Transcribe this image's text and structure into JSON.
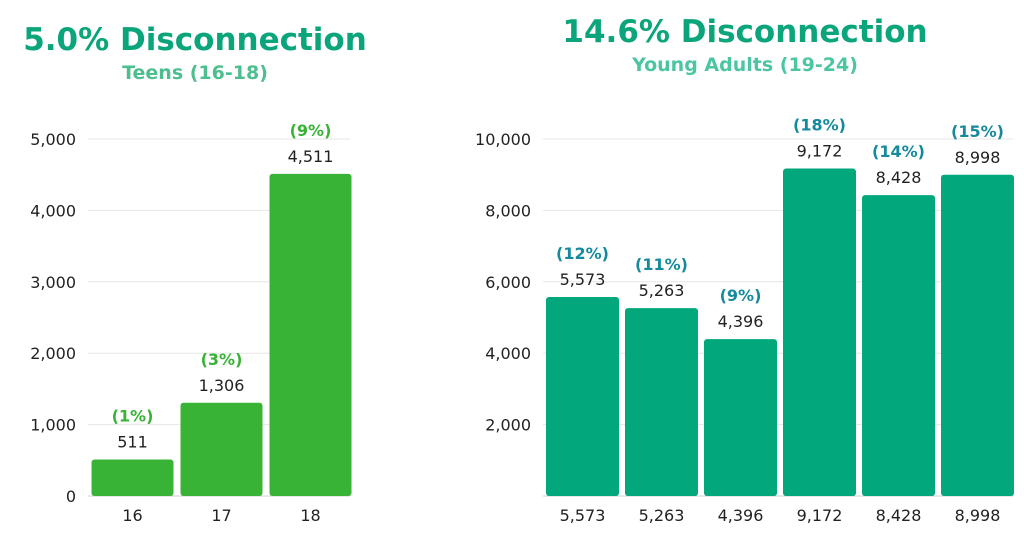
{
  "colors": {
    "teen_bar": "#38b335",
    "teen_title": "#0aa57a",
    "teen_subtitle": "#4dbf8f",
    "teen_pct": "#38b335",
    "young_bar": "#02a77b",
    "young_title": "#0aa57a",
    "young_subtitle": "#4cc6a2",
    "young_pct": "#148a9c",
    "text": "#222222",
    "grid": "#e6e6e6"
  },
  "chart_data": [
    {
      "type": "bar",
      "title": "5.0% Disconnection",
      "subtitle": "Teens (16-18)",
      "categories": [
        "16",
        "17",
        "18"
      ],
      "values": [
        511,
        1306,
        4511
      ],
      "value_labels": [
        "511",
        "1,306",
        "4,511"
      ],
      "percent_labels": [
        "(1%)",
        "(3%)",
        "(9%)"
      ],
      "ylim": [
        0,
        5000
      ],
      "yticks": [
        0,
        1000,
        2000,
        3000,
        4000,
        5000
      ],
      "ytick_labels": [
        "0",
        "1,000",
        "2,000",
        "3,000",
        "4,000",
        "5,000"
      ],
      "grid": true
    },
    {
      "type": "bar",
      "title": "14.6% Disconnection",
      "subtitle": "Young Adults (19-24)",
      "categories": [
        "5,573",
        "5,263",
        "4,396",
        "9,172",
        "8,428",
        "8,998"
      ],
      "values": [
        5573,
        5263,
        4396,
        9172,
        8428,
        8998
      ],
      "value_labels": [
        "5,573",
        "5,263",
        "4,396",
        "9,172",
        "8,428",
        "8,998"
      ],
      "percent_labels": [
        "(12%)",
        "(11%)",
        "(9%)",
        "(18%)",
        "(14%)",
        "(15%)"
      ],
      "ylim": [
        0,
        10000
      ],
      "yticks": [
        2000,
        4000,
        6000,
        8000,
        10000
      ],
      "ytick_labels": [
        "2,000",
        "4,000",
        "6,000",
        "8,000",
        "10,000"
      ],
      "grid": true
    }
  ]
}
